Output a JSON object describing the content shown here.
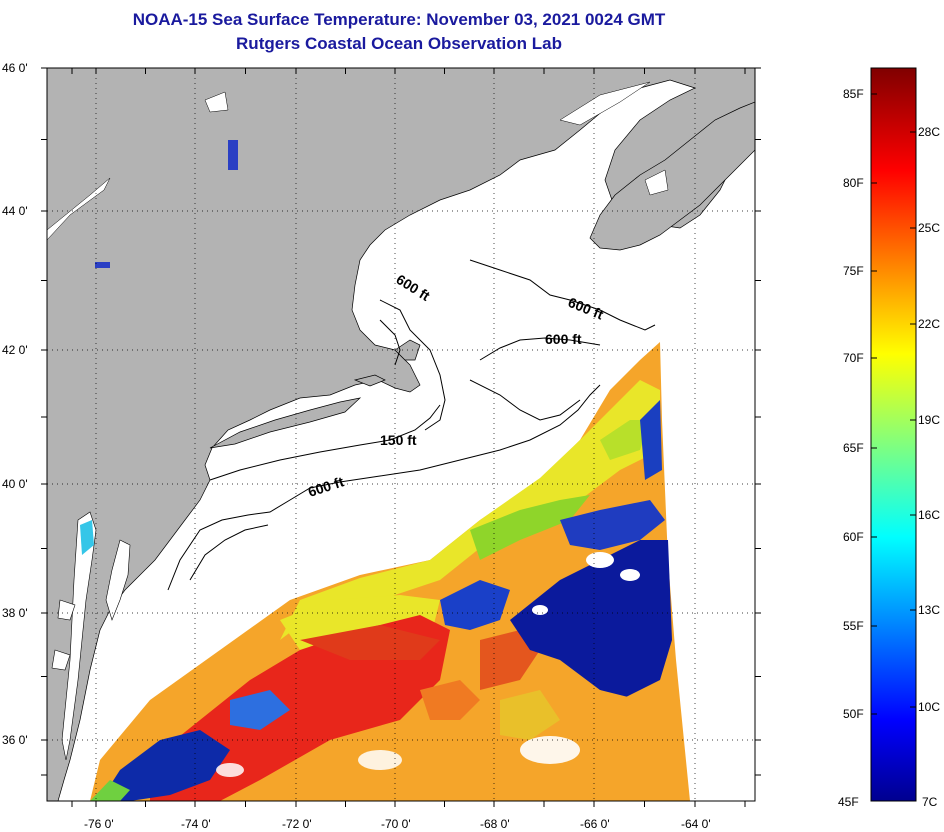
{
  "header": {
    "title": "NOAA-15 Sea Surface Temperature:  November 03, 2021 0024 GMT",
    "subtitle": "Rutgers Coastal Ocean Observation Lab"
  },
  "map": {
    "lat_labels": [
      "46 0'",
      "44 0'",
      "42 0'",
      "40 0'",
      "38 0'",
      "36 0'"
    ],
    "lon_labels": [
      "-76 0'",
      "-74 0'",
      "-72 0'",
      "-70 0'",
      "-68 0'",
      "-66 0'",
      "-64 0'"
    ],
    "contour_labels": [
      "600 ft",
      "600 ft",
      "600 ft",
      "150 ft",
      "600 ft"
    ],
    "colors": {
      "land": "#b3b3b3",
      "ocean_no_data": "#ffffff",
      "warm": "#e8201a",
      "orange": "#f7a62a",
      "yellow": "#e6e62a",
      "cold": "#0a1a9a"
    }
  },
  "colorbar": {
    "fahrenheit_labels": [
      "85F",
      "80F",
      "75F",
      "70F",
      "65F",
      "60F",
      "55F",
      "50F",
      "45F"
    ],
    "celsius_labels": [
      "28C",
      "25C",
      "22C",
      "19C",
      "16C",
      "13C",
      "10C",
      "7C"
    ]
  }
}
